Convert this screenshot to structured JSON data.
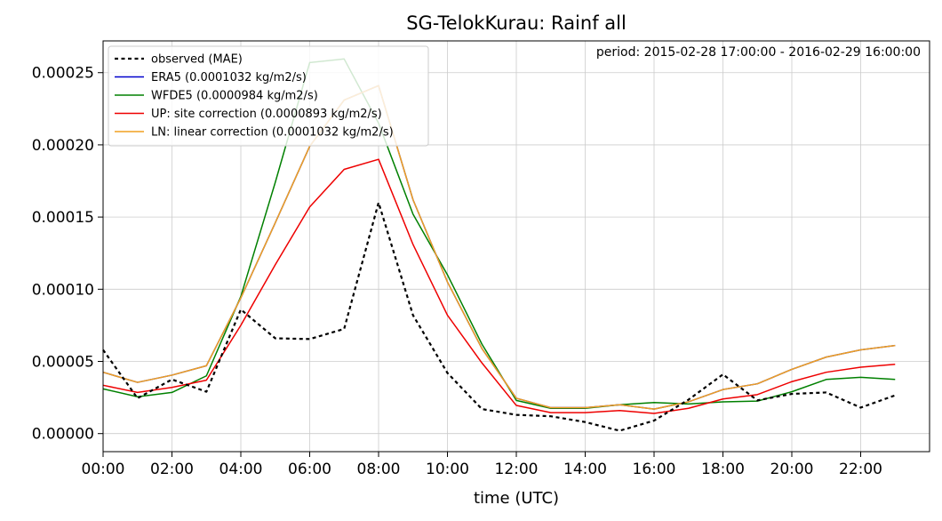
{
  "chart_data": {
    "type": "line",
    "title": "SG-TelokKurau: Rainf all",
    "xlabel": "time (UTC)",
    "ylabel": "",
    "annotation": "period: 2015-02-28 17:00:00 - 2016-02-29 16:00:00",
    "xlim": [
      0,
      24
    ],
    "ylim": [
      -1.25e-05,
      0.000272
    ],
    "x_ticks": [
      0,
      2,
      4,
      6,
      8,
      10,
      12,
      14,
      16,
      18,
      20,
      22
    ],
    "x_tick_labels": [
      "00:00",
      "02:00",
      "04:00",
      "06:00",
      "08:00",
      "10:00",
      "12:00",
      "14:00",
      "16:00",
      "18:00",
      "20:00",
      "22:00"
    ],
    "y_ticks": [
      0,
      5e-05,
      0.0001,
      0.00015,
      0.0002,
      0.00025
    ],
    "y_tick_labels": [
      "0.00000",
      "0.00005",
      "0.00010",
      "0.00015",
      "0.00020",
      "0.00025"
    ],
    "grid": true,
    "legend_position": "top-left",
    "x": [
      0,
      1,
      2,
      3,
      4,
      5,
      6,
      7,
      8,
      9,
      10,
      11,
      12,
      13,
      14,
      15,
      16,
      17,
      18,
      19,
      20,
      21,
      22,
      23
    ],
    "series": [
      {
        "name": "observed (MAE)",
        "color": "#000000",
        "style": "dashed",
        "values": [
          5.8e-05,
          2.45e-05,
          3.75e-05,
          2.9e-05,
          8.6e-05,
          6.6e-05,
          6.55e-05,
          7.25e-05,
          0.00016,
          8.2e-05,
          4.2e-05,
          1.7e-05,
          1.3e-05,
          1.2e-05,
          8e-06,
          2e-06,
          9e-06,
          2.35e-05,
          4.1e-05,
          2.3e-05,
          2.75e-05,
          2.85e-05,
          1.8e-05,
          2.65e-05
        ]
      },
      {
        "name": "ERA5 (0.0001032 kg/m2/s)",
        "color": "#0000cc",
        "style": "solid",
        "values": [
          4.25e-05,
          3.55e-05,
          4.05e-05,
          4.7e-05,
          9.4e-05,
          0.000146,
          0.000199,
          0.000231,
          0.000241,
          0.000162,
          0.000105,
          5.9e-05,
          2.45e-05,
          1.8e-05,
          1.8e-05,
          2e-05,
          1.7e-05,
          2.2e-05,
          3.05e-05,
          3.45e-05,
          4.45e-05,
          5.3e-05,
          5.8e-05,
          6.1e-05
        ]
      },
      {
        "name": "WFDE5 (0.0000984 kg/m2/s)",
        "color": "#008000",
        "style": "solid",
        "values": [
          3.1e-05,
          2.55e-05,
          2.85e-05,
          4e-05,
          9.5e-05,
          0.000174,
          0.000257,
          0.0002595,
          0.000215,
          0.000152,
          0.00011,
          6.2e-05,
          2.3e-05,
          1.75e-05,
          1.75e-05,
          2e-05,
          2.15e-05,
          2.05e-05,
          2.2e-05,
          2.25e-05,
          2.9e-05,
          3.75e-05,
          3.9e-05,
          3.75e-05
        ]
      },
      {
        "name": "UP: site correction (0.0000893 kg/m2/s)",
        "color": "#ee0000",
        "style": "solid",
        "values": [
          3.35e-05,
          2.85e-05,
          3.2e-05,
          3.7e-05,
          7.5e-05,
          0.000117,
          0.000157,
          0.000183,
          0.00019,
          0.000131,
          8.2e-05,
          4.9e-05,
          1.95e-05,
          1.45e-05,
          1.45e-05,
          1.6e-05,
          1.4e-05,
          1.75e-05,
          2.4e-05,
          2.7e-05,
          3.6e-05,
          4.25e-05,
          4.6e-05,
          4.8e-05
        ]
      },
      {
        "name": "LN: linear correction (0.0001032 kg/m2/s)",
        "color": "#f0a020",
        "style": "solid",
        "values": [
          4.25e-05,
          3.55e-05,
          4.05e-05,
          4.7e-05,
          9.4e-05,
          0.000146,
          0.000199,
          0.000231,
          0.000241,
          0.000162,
          0.000105,
          5.9e-05,
          2.45e-05,
          1.8e-05,
          1.8e-05,
          2e-05,
          1.7e-05,
          2.2e-05,
          3.05e-05,
          3.45e-05,
          4.45e-05,
          5.3e-05,
          5.8e-05,
          6.1e-05
        ]
      }
    ]
  }
}
